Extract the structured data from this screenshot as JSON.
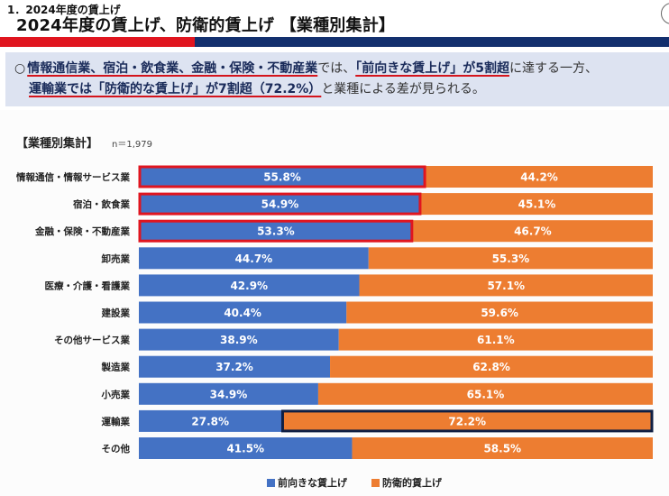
{
  "header": {
    "section_label": "1．2024年度の賃上げ",
    "title": "2024年度の賃上げ、防衛的賃上げ 【業種別集計】"
  },
  "summary": {
    "bullet": "○",
    "line1": [
      {
        "text": "情報通信業、宿泊・飲食業、金融・保険・不動産業",
        "highlight": true
      },
      {
        "text": "では、",
        "highlight": false
      },
      {
        "text": "「前向きな賃上げ」が5割超",
        "highlight": true
      },
      {
        "text": "に達する一方、",
        "highlight": false
      }
    ],
    "line2": [
      {
        "text": "運輸業では「防衛的な賃上げ」が7割超（72.2%）",
        "highlight": true
      },
      {
        "text": "と業種による差が見られる。",
        "highlight": false
      }
    ]
  },
  "chart_heading": "【業種別集計】",
  "sample_size": "n＝1,979",
  "colors": {
    "positive": "#4472c4",
    "defensive": "#ed7d31",
    "highlight_red": "#e0151f",
    "highlight_navy": "#0f1f44",
    "summary_bg": "#dde3f1"
  },
  "chart_data": {
    "type": "bar",
    "orientation": "horizontal",
    "stacked": true,
    "percent": true,
    "title": "【業種別集計】",
    "subtitle": "n＝1,979",
    "categories": [
      "情報通信・情報サービス業",
      "宿泊・飲食業",
      "金融・保険・不動産業",
      "卸売業",
      "医療・介護・看護業",
      "建設業",
      "その他サービス業",
      "製造業",
      "小売業",
      "運輸業",
      "その他"
    ],
    "series": [
      {
        "name": "前向きな賃上げ",
        "values": [
          55.8,
          54.9,
          53.3,
          44.7,
          42.9,
          40.4,
          38.9,
          37.2,
          34.9,
          27.8,
          41.5
        ]
      },
      {
        "name": "防衛的賃上げ",
        "values": [
          44.2,
          45.1,
          46.7,
          55.3,
          57.1,
          59.6,
          61.1,
          62.8,
          65.1,
          72.2,
          58.5
        ]
      }
    ],
    "highlighted": [
      {
        "category": "情報通信・情報サービス業",
        "series": "前向きな賃上げ",
        "style": "red-outline"
      },
      {
        "category": "宿泊・飲食業",
        "series": "前向きな賃上げ",
        "style": "red-outline"
      },
      {
        "category": "金融・保険・不動産業",
        "series": "前向きな賃上げ",
        "style": "red-outline"
      },
      {
        "category": "運輸業",
        "series": "防衛的賃上げ",
        "style": "navy-outline"
      }
    ],
    "xlim": [
      0,
      100
    ],
    "legend_position": "bottom",
    "grid": false
  }
}
